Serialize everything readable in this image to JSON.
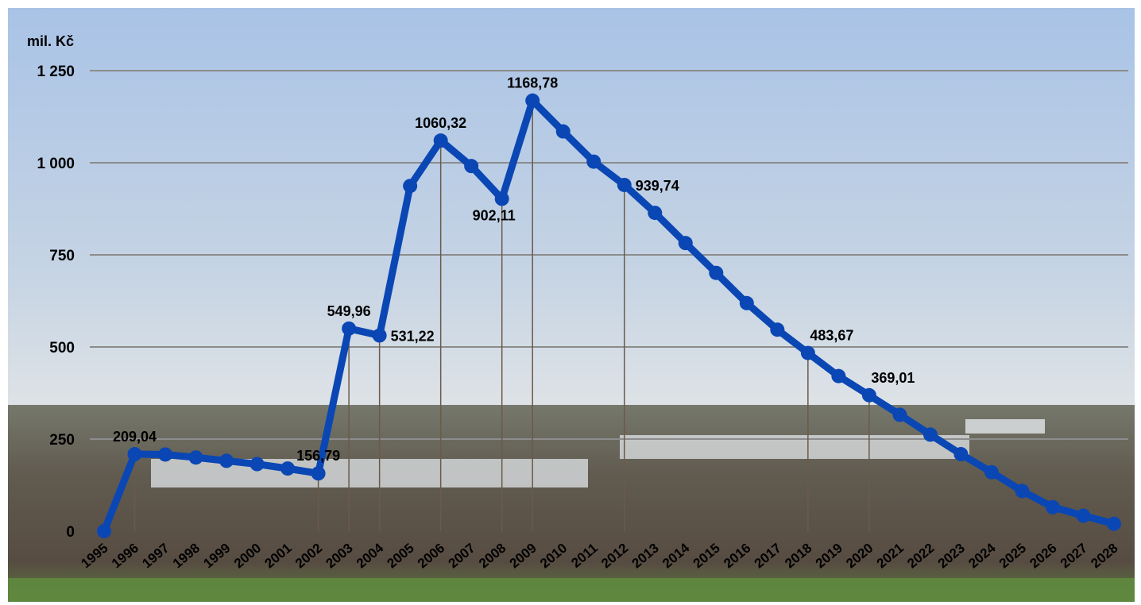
{
  "colors": {
    "series": "#0a47b4",
    "grid": "#8c8c8c",
    "drop_line": "#6b5a4a",
    "sky_top": "#aac4e6",
    "sky_bottom": "#dde4e8",
    "field_far": "#6a7060",
    "field_near": "#5b5347",
    "grass": "#5f8a3e"
  },
  "chart_data": {
    "type": "line",
    "title": "",
    "ylabel": "mil. Kč",
    "xlabel": "",
    "ylim": [
      0,
      1250
    ],
    "y_ticks": [
      0,
      250,
      500,
      750,
      1000,
      1250
    ],
    "y_tick_labels": [
      "0",
      "250",
      "500",
      "750",
      "1 000",
      "1 250"
    ],
    "grid": true,
    "legend": "none",
    "x": [
      "1995",
      "1996",
      "1997",
      "1998",
      "1999",
      "2000",
      "2001",
      "2002",
      "2003",
      "2004",
      "2005",
      "2006",
      "2007",
      "2008",
      "2009",
      "2010",
      "2011",
      "2012",
      "2013",
      "2014",
      "2015",
      "2016",
      "2017",
      "2018",
      "2019",
      "2020",
      "2021",
      "2022",
      "2023",
      "2024",
      "2025",
      "2026",
      "2027",
      "2028"
    ],
    "values": [
      0,
      209.04,
      208,
      200,
      191,
      182,
      170,
      156.79,
      549.96,
      531.22,
      937,
      1060.32,
      991,
      902.11,
      1168.78,
      1085,
      1003,
      939.74,
      864,
      782,
      701,
      619,
      547,
      483.67,
      421,
      369.01,
      316,
      262,
      209,
      160,
      109,
      65,
      42,
      20
    ],
    "data_labels": [
      {
        "x": "1996",
        "text": "209,04",
        "position": "above"
      },
      {
        "x": "2002",
        "text": "156,79",
        "position": "above"
      },
      {
        "x": "2003",
        "text": "549,96",
        "position": "above"
      },
      {
        "x": "2004",
        "text": "531,22",
        "position": "right"
      },
      {
        "x": "2006",
        "text": "1060,32",
        "position": "above"
      },
      {
        "x": "2008",
        "text": "902,11",
        "position": "below"
      },
      {
        "x": "2009",
        "text": "1168,78",
        "position": "above"
      },
      {
        "x": "2012",
        "text": "939,74",
        "position": "right"
      },
      {
        "x": "2018",
        "text": "483,67",
        "position": "above-right"
      },
      {
        "x": "2020",
        "text": "369,01",
        "position": "above-right"
      }
    ],
    "drop_lines_at": [
      "1996",
      "2002",
      "2003",
      "2004",
      "2006",
      "2008",
      "2009",
      "2012",
      "2018",
      "2020"
    ]
  }
}
